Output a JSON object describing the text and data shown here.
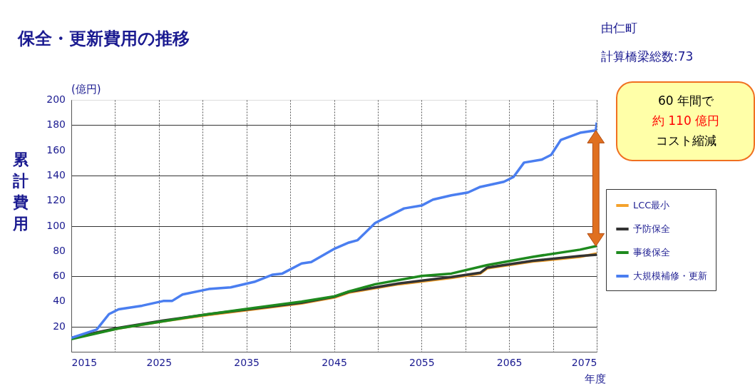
{
  "chart_data": {
    "type": "line",
    "title": "保全・更新費用の推移",
    "subtitle": "由仁町",
    "annotations": [
      "計算橋梁総数:73",
      "(億円)",
      "60 年間で",
      "約 110 億円",
      "コスト縮減"
    ],
    "ylabel": "累計費用",
    "xlabel": "年度",
    "xlim": [
      2015,
      2075
    ],
    "ylim": [
      0,
      200
    ],
    "xticks": [
      2015,
      {
        "value": 2020,
        "label": null
      },
      2025,
      {
        "value": 2030,
        "label": null
      },
      2035,
      {
        "value": 2040,
        "label": null
      },
      2045,
      {
        "value": 2050,
        "label": null
      },
      2055,
      {
        "value": 2060,
        "label": null
      },
      2065,
      {
        "value": 2070,
        "label": null
      },
      2075
    ],
    "yticks": [
      20,
      40,
      60,
      80,
      100,
      120,
      140,
      160,
      180,
      200
    ],
    "grid": true,
    "legend": "right",
    "series": [
      {
        "name": "LCC最小",
        "color": "#f4a22c",
        "x": [
          2015,
          2020.4,
          2025.5,
          2030.4,
          2035.9,
          2041.3,
          2045.1,
          2046.7,
          2052.4,
          2058.4,
          2061.7,
          2062.5,
          2067.7,
          2073.1,
          2075
        ],
        "values": [
          11,
          18.6,
          24.2,
          29,
          33.7,
          38.4,
          43.2,
          47,
          53.6,
          58.7,
          62.1,
          66.3,
          71.6,
          75.4,
          78
        ]
      },
      {
        "name": "予防保全",
        "color": "#333333",
        "x": [
          2015,
          2020.4,
          2025.5,
          2030.4,
          2035.9,
          2041.3,
          2045.1,
          2046.7,
          2052.4,
          2058.4,
          2061.7,
          2062.5,
          2067.7,
          2073.1,
          2075
        ],
        "values": [
          11,
          19,
          24.8,
          29.6,
          34.3,
          39,
          43.8,
          47.6,
          54.2,
          59.3,
          62.7,
          66.9,
          72.2,
          76,
          77
        ]
      },
      {
        "name": "事後保全",
        "color": "#1e8a1e",
        "x": [
          2015,
          2020.4,
          2025.5,
          2030.4,
          2035.9,
          2041.3,
          2045.1,
          2046.7,
          2049.7,
          2055,
          2058.4,
          2062.5,
          2067.7,
          2073.1,
          2075
        ],
        "values": [
          10,
          18.6,
          24.2,
          29.6,
          34.8,
          39.8,
          44.1,
          47.9,
          53.6,
          60.2,
          62.1,
          68.8,
          75.4,
          81.1,
          84
        ]
      },
      {
        "name": "大規模補修・更新",
        "color": "#4a7ef0",
        "x": [
          2015,
          2017.9,
          2019.3,
          2020.4,
          2023.1,
          2025.5,
          2026.5,
          2027.7,
          2030.7,
          2033.2,
          2035.9,
          2038,
          2039.1,
          2041.3,
          2042.4,
          2045.1,
          2046.7,
          2047.7,
          2049.7,
          2053,
          2055,
          2056.3,
          2058.4,
          2060.3,
          2061.7,
          2064.4,
          2065.5,
          2066.7,
          2068.7,
          2069.8,
          2070.9,
          2073.1,
          2074.9,
          2075
        ],
        "values": [
          11,
          17.6,
          29.9,
          33.7,
          36.6,
          40.3,
          40.3,
          45.5,
          49.8,
          51.1,
          55.5,
          61.2,
          62.1,
          70.1,
          71.2,
          82,
          86.7,
          88.6,
          102.3,
          113.8,
          116.1,
          120.8,
          124.2,
          126.5,
          130.9,
          135,
          138.8,
          150.2,
          152.5,
          156.4,
          168.2,
          173.9,
          175.8,
          182
        ]
      }
    ]
  }
}
